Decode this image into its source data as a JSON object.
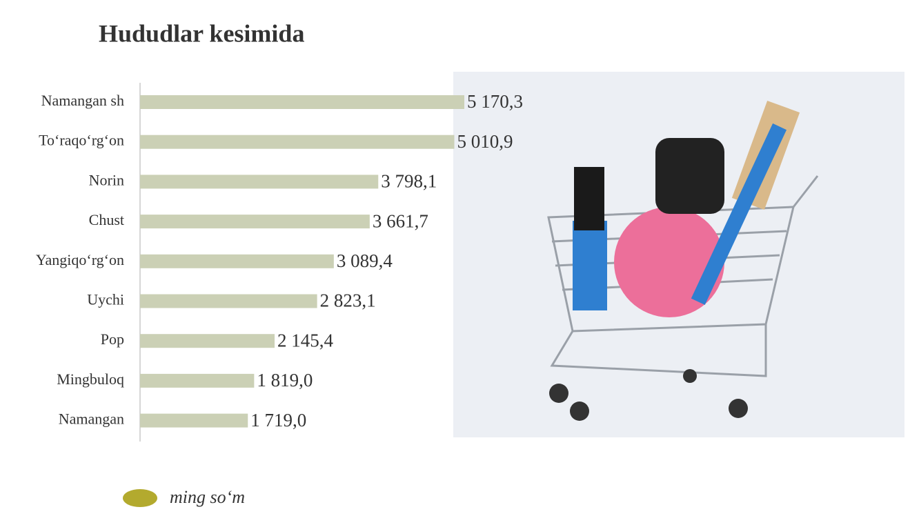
{
  "chart_data": {
    "type": "bar",
    "orientation": "horizontal",
    "title": "Hududlar kesimida",
    "categories": [
      "Namangan sh",
      "To‘raqo‘rg‘on",
      "Norin",
      "Chust",
      "Yangiqo‘rg‘on",
      "Uychi",
      "Pop",
      "Mingbuloq",
      "Namangan"
    ],
    "series": [
      {
        "name": "ming so‘m",
        "color": "#cbd0b5",
        "legend_color": "#b3aa2e",
        "values": [
          5170.3,
          5010.9,
          3798.1,
          3661.7,
          3089.4,
          2823.1,
          2145.4,
          1819.0,
          1719.0
        ],
        "value_labels": [
          "5 170,3",
          "5 010,9",
          "3 798,1",
          "3 661,7",
          "3 089,4",
          "2 823,1",
          "2 145,4",
          "1 819,0",
          "1 719,0"
        ]
      }
    ]
  }
}
